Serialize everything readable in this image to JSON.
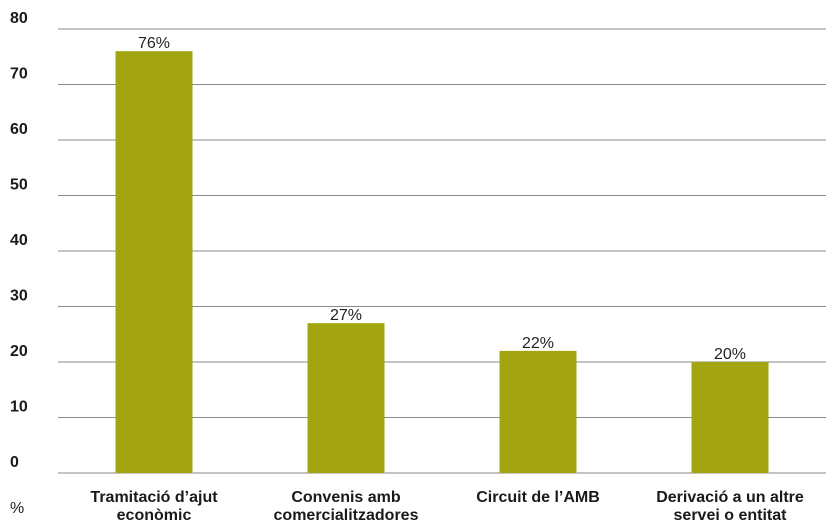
{
  "chart_data": {
    "type": "bar",
    "categories": [
      [
        "Tramitació d’ajut",
        "econòmic"
      ],
      [
        "Convenis amb",
        "comercialitzadores"
      ],
      [
        "Circuit de l’AMB"
      ],
      [
        "Derivació a un altre",
        "servei o entitat"
      ]
    ],
    "values": [
      76,
      27,
      22,
      20
    ],
    "data_labels": [
      "76%",
      "27%",
      "22%",
      "20%"
    ],
    "y_ticks": [
      "0",
      "10",
      "20",
      "30",
      "40",
      "50",
      "60",
      "70",
      "80"
    ],
    "y_unit": "%",
    "ylim": [
      0,
      80
    ],
    "grid": true,
    "bar_color": "#a2a50f",
    "grid_color": "#8a8a8a",
    "text_color": "#1a1a1a"
  }
}
